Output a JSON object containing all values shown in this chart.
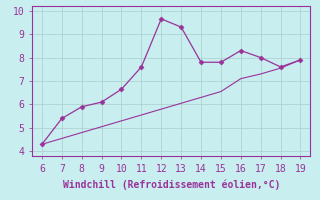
{
  "xlabel": "Windchill (Refroidissement éolien,°C)",
  "line1_x": [
    6,
    7,
    8,
    9,
    10,
    11,
    12,
    13,
    14,
    15,
    16,
    17,
    18,
    19
  ],
  "line1_y": [
    4.3,
    5.4,
    5.9,
    6.1,
    6.65,
    7.6,
    9.65,
    9.3,
    7.8,
    7.8,
    8.3,
    8.0,
    7.6,
    7.9
  ],
  "line2_x": [
    6,
    7,
    8,
    9,
    10,
    11,
    12,
    13,
    14,
    15,
    16,
    17,
    18,
    19
  ],
  "line2_y": [
    4.3,
    4.55,
    4.8,
    5.05,
    5.3,
    5.55,
    5.8,
    6.05,
    6.3,
    6.55,
    7.1,
    7.3,
    7.55,
    7.9
  ],
  "line_color": "#993399",
  "xlim": [
    5.5,
    19.5
  ],
  "ylim": [
    3.8,
    10.2
  ],
  "xticks": [
    6,
    7,
    8,
    9,
    10,
    11,
    12,
    13,
    14,
    15,
    16,
    17,
    18,
    19
  ],
  "yticks": [
    4,
    5,
    6,
    7,
    8,
    9,
    10
  ],
  "bg_color": "#c8eef0",
  "grid_color": "#aacccc",
  "tick_color": "#993399",
  "label_color": "#993399",
  "marker": "D",
  "markersize": 2.5,
  "xlabel_fontsize": 7,
  "tick_fontsize": 7
}
